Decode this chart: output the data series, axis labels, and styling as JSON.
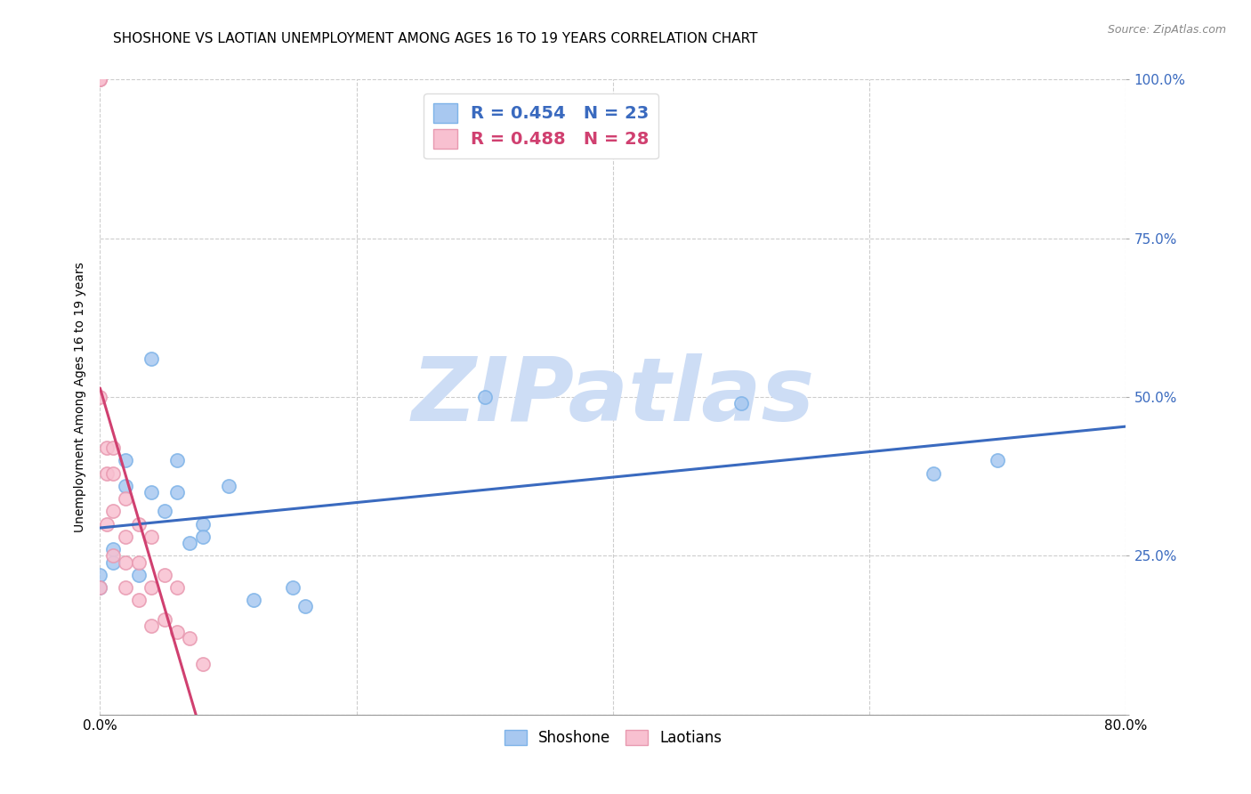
{
  "title": "SHOSHONE VS LAOTIAN UNEMPLOYMENT AMONG AGES 16 TO 19 YEARS CORRELATION CHART",
  "source": "Source: ZipAtlas.com",
  "ylabel": "Unemployment Among Ages 16 to 19 years",
  "xlabel": "",
  "xlim": [
    0.0,
    0.8
  ],
  "ylim": [
    0.0,
    1.0
  ],
  "xticks": [
    0.0,
    0.2,
    0.4,
    0.6,
    0.8
  ],
  "xticklabels": [
    "0.0%",
    "",
    "",
    "",
    "80.0%"
  ],
  "yticks": [
    0.0,
    0.25,
    0.5,
    0.75,
    1.0
  ],
  "yticklabels": [
    "",
    "25.0%",
    "50.0%",
    "75.0%",
    "100.0%"
  ],
  "grid_color": "#c8c8c8",
  "shoshone_color": "#a8c8f0",
  "shoshone_edge_color": "#7eb3e8",
  "laotian_color": "#f8c0d0",
  "laotian_edge_color": "#e899b0",
  "shoshone_line_color": "#3a6abf",
  "laotian_line_color": "#d04070",
  "R_shoshone": 0.454,
  "N_shoshone": 23,
  "R_laotian": 0.488,
  "N_laotian": 28,
  "shoshone_x": [
    0.0,
    0.0,
    0.01,
    0.01,
    0.02,
    0.02,
    0.03,
    0.04,
    0.04,
    0.05,
    0.06,
    0.06,
    0.07,
    0.08,
    0.08,
    0.1,
    0.12,
    0.15,
    0.16,
    0.3,
    0.5,
    0.65,
    0.7
  ],
  "shoshone_y": [
    0.22,
    0.2,
    0.26,
    0.24,
    0.4,
    0.36,
    0.22,
    0.56,
    0.35,
    0.32,
    0.4,
    0.35,
    0.27,
    0.3,
    0.28,
    0.36,
    0.18,
    0.2,
    0.17,
    0.5,
    0.49,
    0.38,
    0.4
  ],
  "laotian_x": [
    0.0,
    0.0,
    0.0,
    0.0,
    0.0,
    0.005,
    0.005,
    0.005,
    0.01,
    0.01,
    0.01,
    0.01,
    0.02,
    0.02,
    0.02,
    0.02,
    0.03,
    0.03,
    0.03,
    0.04,
    0.04,
    0.04,
    0.05,
    0.05,
    0.06,
    0.06,
    0.07,
    0.08
  ],
  "laotian_y": [
    1.0,
    1.0,
    1.0,
    0.5,
    0.2,
    0.42,
    0.38,
    0.3,
    0.42,
    0.38,
    0.32,
    0.25,
    0.34,
    0.28,
    0.24,
    0.2,
    0.3,
    0.24,
    0.18,
    0.28,
    0.2,
    0.14,
    0.22,
    0.15,
    0.2,
    0.13,
    0.12,
    0.08
  ],
  "watermark": "ZIPatlas",
  "watermark_color": "#cdddf5",
  "legend_labels": [
    "Shoshone",
    "Laotians"
  ],
  "title_fontsize": 11,
  "label_fontsize": 10,
  "tick_fontsize": 11,
  "source_fontsize": 9,
  "marker_size": 120
}
